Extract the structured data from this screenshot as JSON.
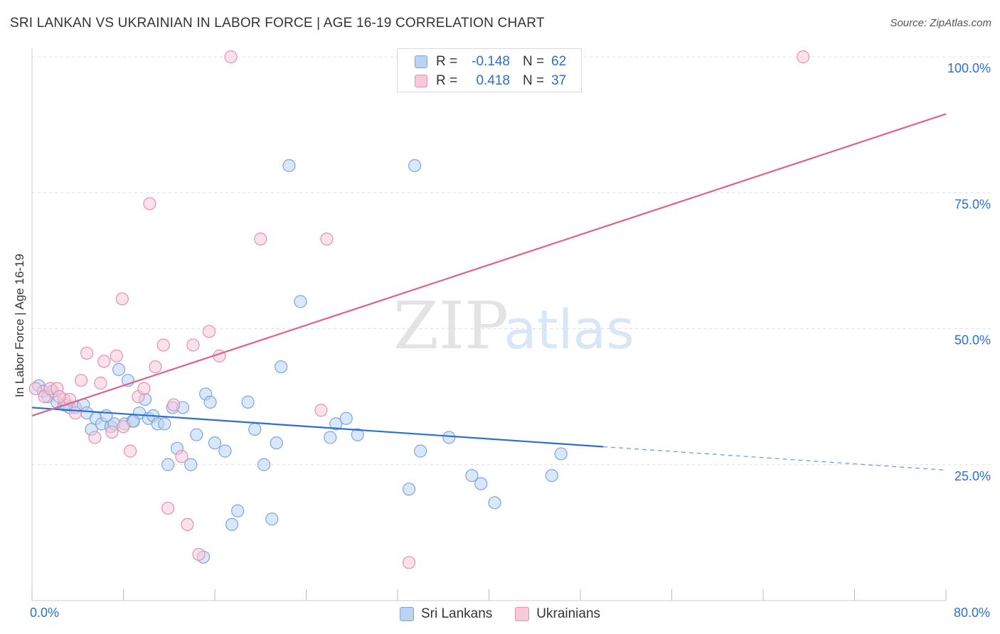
{
  "title": "SRI LANKAN VS UKRAINIAN IN LABOR FORCE | AGE 16-19 CORRELATION CHART",
  "source": "Source: ZipAtlas.com",
  "watermark": {
    "zip": "ZIP",
    "atlas": "atlas"
  },
  "colors": {
    "blue_fill": "#bcd4f4",
    "blue_stroke": "#7aa6e0",
    "blue_line": "#2c6fd1",
    "pink_fill": "#f8c9d8",
    "pink_stroke": "#e98fb0",
    "pink_line": "#e0608e",
    "grid": "#dddddd",
    "tick_text": "#2c6fd1"
  },
  "legend": {
    "rows": [
      {
        "r_label": "R =",
        "r_value": "-0.148",
        "n_label": "N =",
        "n_value": "62"
      },
      {
        "r_label": "R =",
        "r_value": "0.418",
        "n_label": "N =",
        "n_value": "37"
      }
    ]
  },
  "chart_data": {
    "type": "scatter",
    "ylabel": "In Labor Force | Age 16-19",
    "xlim": [
      0,
      80
    ],
    "ylim": [
      0,
      100
    ],
    "x_tick_labels": [
      "0.0%",
      "80.0%"
    ],
    "y_ticks": [
      25,
      50,
      75,
      100
    ],
    "y_tick_labels": [
      "25.0%",
      "50.0%",
      "75.0%",
      "100.0%"
    ],
    "grid": true,
    "legend_position": "bottom",
    "series": [
      {
        "name": "Sri Lankans",
        "color": "#bcd4f4",
        "trend": {
          "x0": 0,
          "y0": 35.5,
          "x1": 50,
          "y1": 28.3,
          "dash_to_x": 80,
          "dash_to_y": 24.0
        },
        "points": [
          [
            0.6,
            39.5
          ],
          [
            1.0,
            38.5
          ],
          [
            1.4,
            37.5
          ],
          [
            1.8,
            38.5
          ],
          [
            2.2,
            36.5
          ],
          [
            2.8,
            36.0
          ],
          [
            3.3,
            35.5
          ],
          [
            3.8,
            35.5
          ],
          [
            4.5,
            36.0
          ],
          [
            4.8,
            34.5
          ],
          [
            5.2,
            31.5
          ],
          [
            5.6,
            33.5
          ],
          [
            6.1,
            32.5
          ],
          [
            6.5,
            34.0
          ],
          [
            6.9,
            32.0
          ],
          [
            7.2,
            32.5
          ],
          [
            7.6,
            42.5
          ],
          [
            8.1,
            32.5
          ],
          [
            8.4,
            40.5
          ],
          [
            8.8,
            33.0
          ],
          [
            9.4,
            34.5
          ],
          [
            9.9,
            37.0
          ],
          [
            10.2,
            33.5
          ],
          [
            10.6,
            34.0
          ],
          [
            11.0,
            32.5
          ],
          [
            11.6,
            32.5
          ],
          [
            11.9,
            25.0
          ],
          [
            12.3,
            35.5
          ],
          [
            12.7,
            28.0
          ],
          [
            13.2,
            35.5
          ],
          [
            13.9,
            25.0
          ],
          [
            14.4,
            30.5
          ],
          [
            15.2,
            38.0
          ],
          [
            15.6,
            36.5
          ],
          [
            16.0,
            29.0
          ],
          [
            16.9,
            27.5
          ],
          [
            17.5,
            14.0
          ],
          [
            18.0,
            16.5
          ],
          [
            18.9,
            36.5
          ],
          [
            19.5,
            31.5
          ],
          [
            20.3,
            25.0
          ],
          [
            21.0,
            15.0
          ],
          [
            21.4,
            29.0
          ],
          [
            21.8,
            43.0
          ],
          [
            22.5,
            80.0
          ],
          [
            23.5,
            55.0
          ],
          [
            26.1,
            30.0
          ],
          [
            26.6,
            32.5
          ],
          [
            27.5,
            33.5
          ],
          [
            28.5,
            30.5
          ],
          [
            33.0,
            20.5
          ],
          [
            33.5,
            80.0
          ],
          [
            34.0,
            27.5
          ],
          [
            36.5,
            30.0
          ],
          [
            38.5,
            23.0
          ],
          [
            39.3,
            21.5
          ],
          [
            40.5,
            18.0
          ],
          [
            45.5,
            23.0
          ],
          [
            46.3,
            27.0
          ],
          [
            15.0,
            8.0
          ],
          [
            8.9,
            33.0
          ],
          [
            3.0,
            36.0
          ]
        ]
      },
      {
        "name": "Ukrainians",
        "color": "#f8c9d8",
        "trend": {
          "x0": 0,
          "y0": 34.0,
          "x1": 80,
          "y1": 89.5
        },
        "points": [
          [
            0.3,
            39.0
          ],
          [
            1.1,
            37.5
          ],
          [
            1.6,
            39.0
          ],
          [
            2.2,
            39.0
          ],
          [
            2.8,
            37.0
          ],
          [
            3.3,
            37.0
          ],
          [
            3.8,
            34.5
          ],
          [
            4.3,
            40.5
          ],
          [
            4.8,
            45.5
          ],
          [
            5.5,
            30.0
          ],
          [
            6.0,
            40.0
          ],
          [
            6.3,
            44.0
          ],
          [
            7.0,
            31.0
          ],
          [
            7.4,
            45.0
          ],
          [
            7.9,
            55.5
          ],
          [
            8.6,
            27.5
          ],
          [
            9.3,
            37.5
          ],
          [
            9.8,
            39.0
          ],
          [
            10.3,
            73.0
          ],
          [
            10.8,
            43.0
          ],
          [
            11.5,
            47.0
          ],
          [
            11.9,
            17.0
          ],
          [
            12.4,
            36.0
          ],
          [
            13.1,
            26.5
          ],
          [
            13.6,
            14.0
          ],
          [
            14.1,
            47.0
          ],
          [
            14.6,
            8.5
          ],
          [
            15.5,
            49.5
          ],
          [
            16.4,
            45.0
          ],
          [
            17.4,
            100.0
          ],
          [
            20.0,
            66.5
          ],
          [
            25.3,
            35.0
          ],
          [
            25.8,
            66.5
          ],
          [
            33.0,
            7.0
          ],
          [
            67.5,
            100.0
          ],
          [
            8.0,
            32.0
          ],
          [
            2.4,
            37.5
          ]
        ]
      }
    ]
  }
}
